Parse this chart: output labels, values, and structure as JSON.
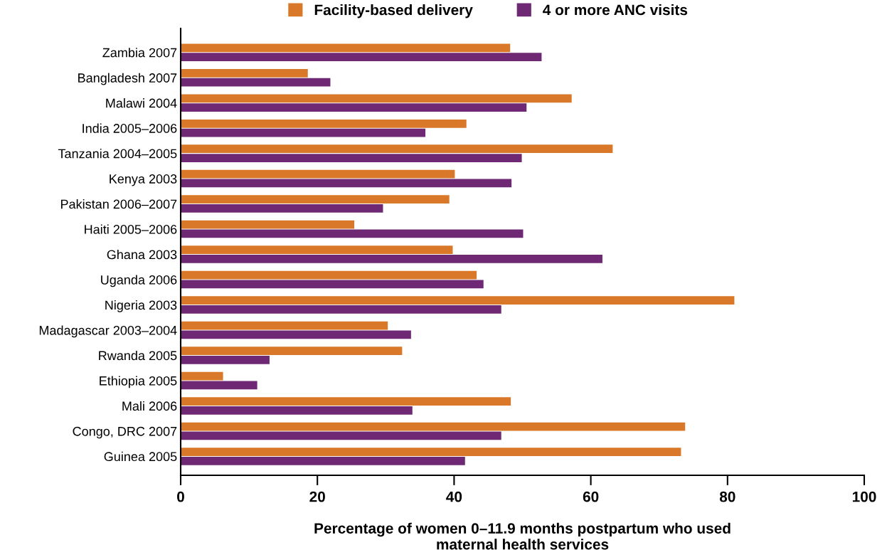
{
  "chart_data": {
    "type": "bar",
    "orientation": "horizontal",
    "categories": [
      "Zambia 2007",
      "Bangladesh 2007",
      "Malawi 2004",
      "India 2005–2006",
      "Tanzania 2004–2005",
      "Kenya 2003",
      "Pakistan 2006–2007",
      "Haiti 2005–2006",
      "Ghana 2003",
      "Uganda 2006",
      "Nigeria 2003",
      "Madagascar 2003–2004",
      "Rwanda 2005",
      "Ethiopia 2005",
      "Mali 2006",
      "Congo, DRC 2007",
      "Guinea 2005"
    ],
    "series": [
      {
        "name": "Facility-based delivery",
        "color": "#d87828",
        "values": [
          48.2,
          18.6,
          57.2,
          41.8,
          63.2,
          40.1,
          39.3,
          25.4,
          39.8,
          43.3,
          81.0,
          30.3,
          32.4,
          6.2,
          48.3,
          73.8,
          73.2
        ]
      },
      {
        "name": "4 or more ANC visits",
        "color": "#6e2874",
        "values": [
          52.8,
          21.9,
          50.6,
          35.8,
          49.9,
          48.4,
          29.6,
          50.1,
          61.7,
          44.3,
          46.9,
          33.7,
          13.0,
          11.2,
          33.9,
          46.9,
          41.6
        ]
      }
    ],
    "xlabel": "Percentage of women 0–11.9 months postpartum who used\nmaternal health services",
    "xlim": [
      0,
      100
    ],
    "xticks": [
      0,
      20,
      40,
      60,
      80,
      100
    ],
    "grid": false,
    "legend": "top"
  }
}
